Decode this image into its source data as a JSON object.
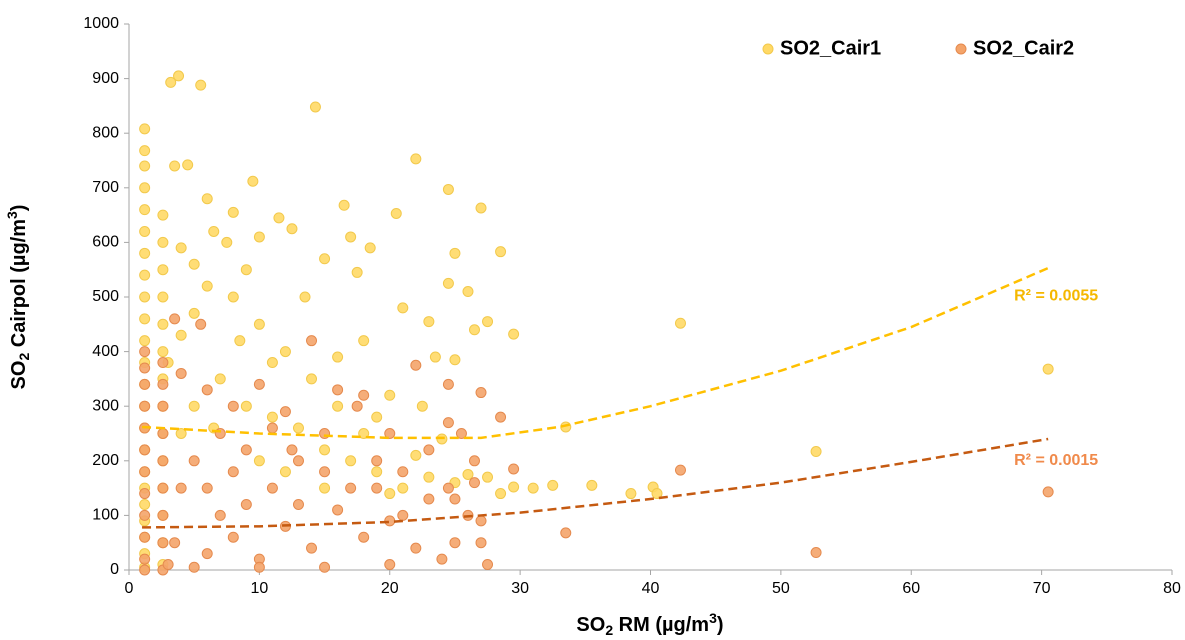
{
  "chart_data": {
    "type": "scatter",
    "xlabel": [
      "SO",
      "2",
      " RM (µg/m",
      "3",
      ")"
    ],
    "ylabel": [
      "SO",
      "2",
      " Cairpol (µg/m",
      "3",
      ")"
    ],
    "xlim": [
      0,
      80
    ],
    "xticks": [
      0,
      10,
      20,
      30,
      40,
      50,
      60,
      70,
      80
    ],
    "ylim": [
      0,
      1000
    ],
    "yticks": [
      0,
      100,
      200,
      300,
      400,
      500,
      600,
      700,
      800,
      900,
      1000
    ],
    "grid": false,
    "legend": "top-right",
    "series": [
      {
        "name": "SO2_Cair1",
        "color": "#ffd966",
        "stroke": "#f2c94c",
        "x": [
          1.2,
          1.2,
          1.2,
          1.2,
          1.2,
          1.2,
          1.2,
          1.2,
          1.2,
          1.2,
          1.2,
          1.2,
          1.2,
          1.2,
          1.2,
          1.2,
          1.2,
          1.2,
          1.2,
          1.2,
          1.2,
          1.2,
          1.2,
          2.6,
          2.6,
          2.6,
          2.6,
          2.6,
          2.6,
          2.6,
          2.6,
          2.6,
          2.6,
          2.6,
          2.6,
          2.6,
          2.6,
          3.2,
          3.8,
          5.5,
          14.3,
          9.5,
          22,
          24.5,
          27,
          16.5,
          20.5,
          28.5,
          17,
          3.5,
          4.5,
          6,
          8,
          11.5,
          12.5,
          6.5,
          7.5,
          10,
          4,
          5,
          9,
          15,
          17.5,
          18.5,
          25,
          26,
          24.5,
          21,
          23,
          27.5,
          29.5,
          26.5,
          42.3,
          70.5,
          52.7,
          33.5,
          35.5,
          38.5,
          40.2,
          40.5,
          32.5,
          31,
          29.5,
          27.5,
          28.5,
          26,
          24,
          22.5,
          20,
          19,
          18,
          16,
          14,
          12,
          10,
          8,
          6,
          5,
          4,
          3,
          7,
          9,
          11,
          13,
          15,
          17,
          19,
          21,
          23,
          25,
          13.5,
          11,
          8.5,
          6.5,
          5,
          4,
          10,
          12,
          15,
          20,
          22,
          16,
          18,
          23.5,
          25
        ],
        "values": [
          808,
          768,
          740,
          700,
          660,
          620,
          580,
          540,
          500,
          460,
          420,
          380,
          340,
          300,
          260,
          220,
          180,
          150,
          120,
          90,
          60,
          30,
          5,
          650,
          600,
          550,
          500,
          450,
          400,
          350,
          300,
          250,
          200,
          150,
          100,
          50,
          10,
          893,
          905,
          888,
          848,
          712,
          753,
          697,
          663,
          668,
          653,
          583,
          610,
          740,
          742,
          680,
          655,
          645,
          625,
          620,
          600,
          610,
          590,
          560,
          550,
          570,
          545,
          590,
          580,
          510,
          525,
          480,
          455,
          455,
          432,
          440,
          452,
          368,
          217,
          262,
          155,
          140,
          152,
          140,
          155,
          150,
          152,
          170,
          140,
          175,
          240,
          300,
          320,
          280,
          250,
          300,
          350,
          400,
          450,
          500,
          520,
          470,
          430,
          380,
          350,
          300,
          280,
          260,
          220,
          200,
          180,
          150,
          170,
          160,
          500,
          380,
          420,
          260,
          300,
          250,
          200,
          180,
          150,
          140,
          210,
          390,
          420,
          390,
          385
        ]
      },
      {
        "name": "SO2_Cair2",
        "color": "#f4a46a",
        "stroke": "#e58a4e",
        "x": [
          1.2,
          1.2,
          1.2,
          1.2,
          1.2,
          1.2,
          1.2,
          1.2,
          1.2,
          1.2,
          1.2,
          1.2,
          2.6,
          2.6,
          2.6,
          2.6,
          2.6,
          2.6,
          2.6,
          2.6,
          2.6,
          3.5,
          5.5,
          4,
          6,
          8,
          10,
          12,
          14,
          16,
          18,
          22,
          24.5,
          27,
          28.5,
          29.5,
          42.3,
          70.5,
          52.7,
          33.5,
          25.5,
          24.5,
          23,
          21,
          19,
          17,
          15,
          13,
          11,
          9,
          7,
          5,
          4,
          3.5,
          6,
          8,
          10,
          12,
          14,
          16,
          18,
          20,
          22,
          24,
          25,
          26,
          27.5,
          27,
          26.5,
          25,
          23,
          20,
          15,
          10,
          5,
          3,
          7,
          9,
          11,
          13,
          19,
          21,
          17.5,
          15,
          12.5,
          6,
          8,
          27,
          26.5,
          24.5,
          20
        ],
        "values": [
          400,
          370,
          340,
          300,
          260,
          220,
          180,
          140,
          100,
          60,
          20,
          0,
          380,
          340,
          300,
          250,
          200,
          150,
          100,
          50,
          0,
          460,
          450,
          360,
          330,
          300,
          340,
          290,
          420,
          330,
          320,
          375,
          340,
          325,
          280,
          185,
          183,
          143,
          32,
          68,
          250,
          270,
          220,
          180,
          200,
          150,
          250,
          200,
          150,
          120,
          100,
          200,
          150,
          50,
          30,
          60,
          20,
          80,
          40,
          110,
          60,
          90,
          40,
          20,
          50,
          100,
          10,
          50,
          200,
          130,
          130,
          10,
          5,
          5,
          5,
          10,
          250,
          220,
          260,
          120,
          150,
          100,
          300,
          180,
          220,
          150,
          180,
          90,
          160,
          150,
          250
        ]
      }
    ],
    "trendlines": [
      {
        "label": "R² = 0.0055",
        "color": "#ffc000",
        "label_color": "#f5b800",
        "x": [
          1,
          10,
          20,
          27,
          33,
          40,
          50,
          60,
          70.5
        ],
        "values": [
          262,
          250,
          242,
          242,
          262,
          300,
          365,
          445,
          553
        ]
      },
      {
        "label": "R² = 0.0015",
        "color": "#c55a11",
        "label_color": "#f08a4b",
        "x": [
          1,
          10,
          20,
          30,
          40,
          50,
          60,
          70.5
        ],
        "values": [
          78,
          80,
          88,
          105,
          130,
          160,
          198,
          240
        ]
      }
    ]
  }
}
